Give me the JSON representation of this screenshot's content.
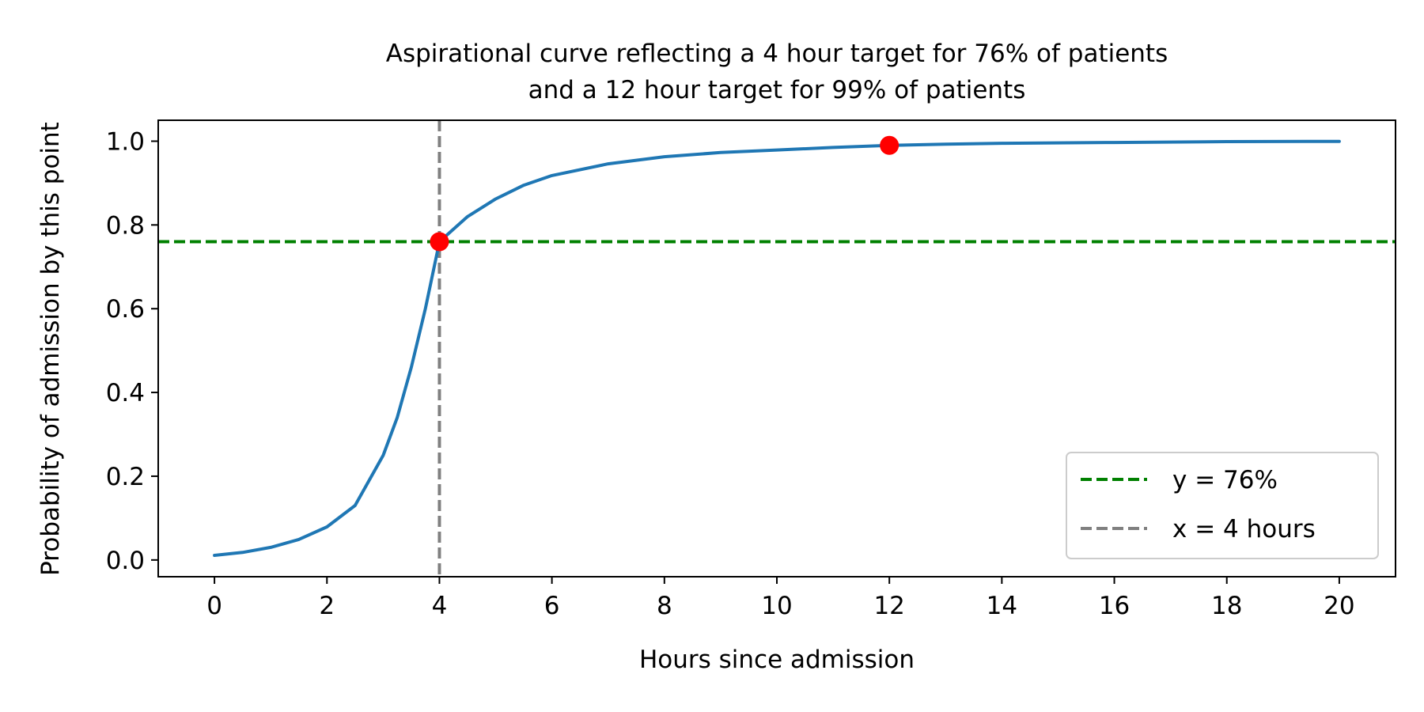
{
  "chart_data": {
    "type": "line",
    "title_line1": "Aspirational curve reflecting a 4 hour target for 76% of patients",
    "title_line2": "and a 12 hour target for 99% of patients",
    "xlabel": "Hours since admission",
    "ylabel": "Probability of admission by this point",
    "xlim": [
      -1,
      21
    ],
    "ylim": [
      -0.04,
      1.05
    ],
    "xticks": [
      0,
      2,
      4,
      6,
      8,
      10,
      12,
      14,
      16,
      18,
      20
    ],
    "yticks": [
      0.0,
      0.2,
      0.4,
      0.6,
      0.8,
      1.0
    ],
    "ytick_labels": [
      "0.0",
      "0.2",
      "0.4",
      "0.6",
      "0.8",
      "1.0"
    ],
    "grid": false,
    "legend_position": "lower-right",
    "series": [
      {
        "color": "#1f77b4",
        "x": [
          0,
          0.5,
          1,
          1.5,
          2,
          2.5,
          3,
          3.25,
          3.5,
          3.75,
          4,
          4.5,
          5,
          5.5,
          6,
          7,
          8,
          9,
          10,
          11,
          12,
          13,
          14,
          16,
          18,
          20
        ],
        "y": [
          0.011,
          0.018,
          0.03,
          0.049,
          0.079,
          0.13,
          0.25,
          0.34,
          0.46,
          0.6,
          0.76,
          0.82,
          0.862,
          0.895,
          0.918,
          0.946,
          0.963,
          0.973,
          0.979,
          0.985,
          0.99,
          0.993,
          0.995,
          0.997,
          0.999,
          0.9995
        ]
      }
    ],
    "reference_lines": [
      {
        "orientation": "horizontal",
        "value": 0.76,
        "label": "y = 76%",
        "color": "#008000"
      },
      {
        "orientation": "vertical",
        "value": 4,
        "label": "x = 4 hours",
        "color": "#808080"
      }
    ],
    "target_points": [
      {
        "x": 4,
        "y": 0.76,
        "color": "#ff0000"
      },
      {
        "x": 12,
        "y": 0.99,
        "color": "#ff0000"
      }
    ]
  }
}
